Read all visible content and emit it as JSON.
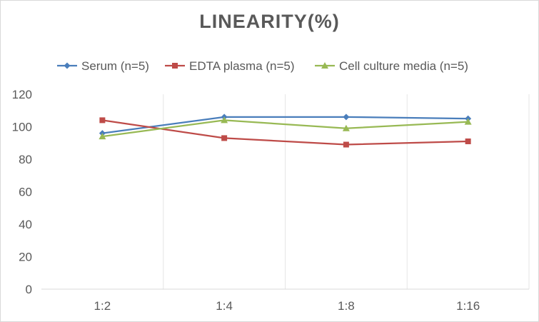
{
  "chart_data": {
    "type": "line",
    "title": "LINEARITY(%)",
    "categories": [
      "1:2",
      "1:4",
      "1:8",
      "1:16"
    ],
    "ylim": [
      0,
      120
    ],
    "yticks": [
      0,
      20,
      40,
      60,
      80,
      100,
      120
    ],
    "grid": "vertical",
    "legend_position": "top",
    "series": [
      {
        "name": "Serum (n=5)",
        "values": [
          96,
          106,
          106,
          105
        ],
        "color": "#4a7ebb",
        "marker": "diamond"
      },
      {
        "name": "EDTA plasma (n=5)",
        "values": [
          104,
          93,
          89,
          91
        ],
        "color": "#be4b48",
        "marker": "square"
      },
      {
        "name": "Cell culture media (n=5)",
        "values": [
          94,
          104,
          99,
          103
        ],
        "color": "#98b954",
        "marker": "triangle"
      }
    ]
  }
}
